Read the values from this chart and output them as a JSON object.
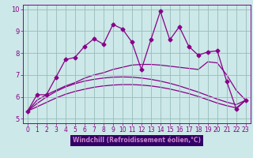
{
  "xlabel": "Windchill (Refroidissement éolien,°C)",
  "xlim": [
    -0.5,
    23.5
  ],
  "ylim": [
    4.8,
    10.2
  ],
  "yticks": [
    5,
    6,
    7,
    8,
    9,
    10
  ],
  "xticks": [
    0,
    1,
    2,
    3,
    4,
    5,
    6,
    7,
    8,
    9,
    10,
    11,
    12,
    13,
    14,
    15,
    16,
    17,
    18,
    19,
    20,
    21,
    22,
    23
  ],
  "bg_color": "#b8d4d4",
  "plot_bg_color": "#cce8e8",
  "line_color": "#880088",
  "grid_color": "#99bbbb",
  "xlabel_bg": "#330066",
  "xlabel_fg": "#cc88cc",
  "main_x": [
    0,
    1,
    2,
    3,
    4,
    5,
    6,
    7,
    8,
    9,
    10,
    11,
    12,
    13,
    14,
    15,
    16,
    17,
    18,
    19,
    20,
    21,
    22,
    23
  ],
  "main_y": [
    5.35,
    6.1,
    6.1,
    6.9,
    7.7,
    7.8,
    8.3,
    8.65,
    8.4,
    9.3,
    9.1,
    8.5,
    7.25,
    8.6,
    9.9,
    8.6,
    9.2,
    8.3,
    7.9,
    8.05,
    8.1,
    6.7,
    5.45,
    5.85
  ],
  "smooth1_x": [
    0,
    1,
    2,
    3,
    4,
    5,
    6,
    7,
    8,
    9,
    10,
    11,
    12,
    13,
    14,
    15,
    16,
    17,
    18,
    19,
    20,
    21,
    22,
    23
  ],
  "smooth1_y": [
    5.35,
    5.55,
    5.75,
    5.95,
    6.12,
    6.25,
    6.35,
    6.44,
    6.5,
    6.54,
    6.56,
    6.56,
    6.54,
    6.5,
    6.44,
    6.36,
    6.26,
    6.15,
    6.02,
    5.87,
    5.72,
    5.6,
    5.5,
    5.85
  ],
  "smooth2_x": [
    0,
    1,
    2,
    3,
    4,
    5,
    6,
    7,
    8,
    9,
    10,
    11,
    12,
    13,
    14,
    15,
    16,
    17,
    18,
    19,
    20,
    21,
    22,
    23
  ],
  "smooth2_y": [
    5.35,
    5.7,
    6.0,
    6.25,
    6.45,
    6.6,
    6.72,
    6.8,
    6.86,
    6.9,
    6.91,
    6.9,
    6.86,
    6.8,
    6.72,
    6.62,
    6.5,
    6.36,
    6.22,
    6.06,
    5.9,
    5.76,
    5.65,
    5.85
  ],
  "smooth3_x": [
    0,
    1,
    2,
    3,
    4,
    5,
    6,
    7,
    8,
    9,
    10,
    11,
    12,
    13,
    14,
    15,
    16,
    17,
    18,
    19,
    20,
    21,
    22,
    23
  ],
  "smooth3_y": [
    5.35,
    5.85,
    6.1,
    6.3,
    6.5,
    6.65,
    6.85,
    7.0,
    7.1,
    7.25,
    7.35,
    7.45,
    7.48,
    7.48,
    7.45,
    7.4,
    7.35,
    7.3,
    7.25,
    7.6,
    7.55,
    7.0,
    6.3,
    5.85
  ]
}
